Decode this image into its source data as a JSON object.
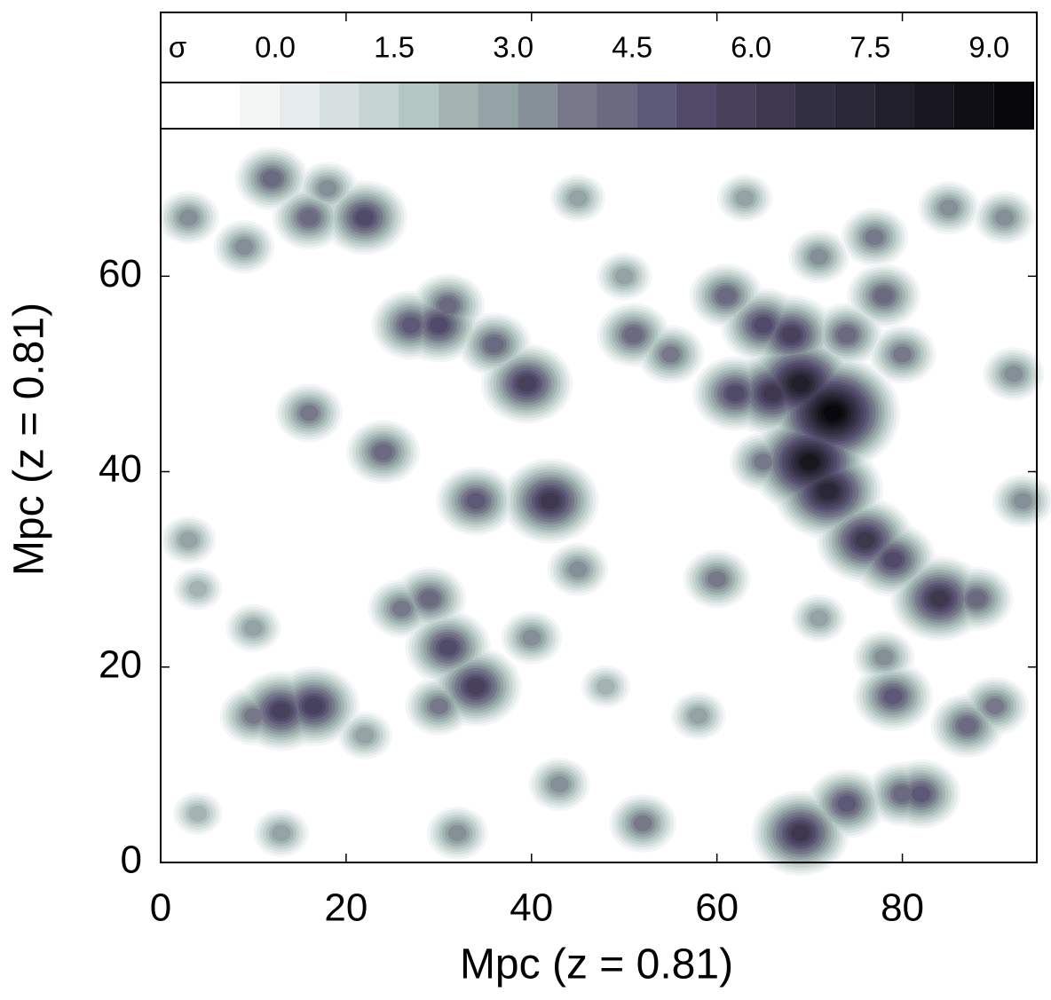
{
  "chart_data": {
    "type": "contour",
    "xlabel": "Mpc (z = 0.81)",
    "ylabel": "Mpc (z = 0.81)",
    "xlim": [
      0,
      94.5
    ],
    "ylim": [
      0,
      87
    ],
    "xticks": [
      0,
      20,
      40,
      60,
      80
    ],
    "yticks": [
      0,
      20,
      40,
      60
    ],
    "colorbar": {
      "label": "σ",
      "clim": [
        -1.5,
        9.5
      ],
      "ticks": [
        {
          "value": 0,
          "label": "0.0"
        },
        {
          "value": 1.5,
          "label": "1.5"
        },
        {
          "value": 3,
          "label": "3.0"
        },
        {
          "value": 4.5,
          "label": "4.5"
        },
        {
          "value": 6,
          "label": "6.0"
        },
        {
          "value": 7.5,
          "label": "7.5"
        },
        {
          "value": 9,
          "label": "9.0"
        }
      ],
      "levels": [
        -1.5,
        -1.0,
        -0.5,
        0.0,
        0.5,
        1.0,
        1.5,
        2.0,
        2.5,
        3.0,
        3.5,
        4.0,
        4.5,
        5.0,
        5.5,
        6.0,
        6.5,
        7.0,
        7.5,
        8.0,
        8.5,
        9.0
      ],
      "colors": [
        "#ffffff",
        "#ffffff",
        "#f4f6f6",
        "#e6ecec",
        "#d5e0df",
        "#c5d3d1",
        "#b4c6c3",
        "#a3b4b3",
        "#94a3a5",
        "#858f97",
        "#77798a",
        "#6a6a80",
        "#5c5877",
        "#514b69",
        "#47415b",
        "#3d384e",
        "#332f42",
        "#2a2736",
        "#211f2b",
        "#181720",
        "#0f0f15",
        "#08080c"
      ]
    },
    "sources": [
      {
        "x": 72.5,
        "y": 46,
        "sigma": 9.0
      },
      {
        "x": 69,
        "y": 49,
        "sigma": 7.5
      },
      {
        "x": 70,
        "y": 41,
        "sigma": 8.0
      },
      {
        "x": 72,
        "y": 38,
        "sigma": 7.0
      },
      {
        "x": 66,
        "y": 48,
        "sigma": 6.0
      },
      {
        "x": 62,
        "y": 48,
        "sigma": 5.0
      },
      {
        "x": 76,
        "y": 33,
        "sigma": 6.0
      },
      {
        "x": 79,
        "y": 31,
        "sigma": 5.0
      },
      {
        "x": 84,
        "y": 27,
        "sigma": 6.0
      },
      {
        "x": 88,
        "y": 27,
        "sigma": 4.0
      },
      {
        "x": 68,
        "y": 54,
        "sigma": 5.5
      },
      {
        "x": 65,
        "y": 55,
        "sigma": 5.0
      },
      {
        "x": 61,
        "y": 58,
        "sigma": 4.0
      },
      {
        "x": 74,
        "y": 54,
        "sigma": 4.0
      },
      {
        "x": 78,
        "y": 58,
        "sigma": 4.0
      },
      {
        "x": 80,
        "y": 52,
        "sigma": 3.5
      },
      {
        "x": 55,
        "y": 52,
        "sigma": 3.5
      },
      {
        "x": 51,
        "y": 54,
        "sigma": 4.0
      },
      {
        "x": 42,
        "y": 37,
        "sigma": 6.0
      },
      {
        "x": 34,
        "y": 37,
        "sigma": 4.5
      },
      {
        "x": 39.5,
        "y": 49,
        "sigma": 5.5
      },
      {
        "x": 36,
        "y": 53,
        "sigma": 4.0
      },
      {
        "x": 30,
        "y": 55,
        "sigma": 5.0
      },
      {
        "x": 27,
        "y": 55,
        "sigma": 4.5
      },
      {
        "x": 31,
        "y": 57,
        "sigma": 4.0
      },
      {
        "x": 22,
        "y": 66,
        "sigma": 5.0
      },
      {
        "x": 16,
        "y": 66,
        "sigma": 4.0
      },
      {
        "x": 12,
        "y": 70,
        "sigma": 4.0
      },
      {
        "x": 18,
        "y": 69,
        "sigma": 3.0
      },
      {
        "x": 3,
        "y": 66,
        "sigma": 3.0
      },
      {
        "x": 9,
        "y": 63,
        "sigma": 3.0
      },
      {
        "x": 24,
        "y": 42,
        "sigma": 4.0
      },
      {
        "x": 16,
        "y": 46,
        "sigma": 3.5
      },
      {
        "x": 13,
        "y": 15.5,
        "sigma": 5.5
      },
      {
        "x": 16.5,
        "y": 16,
        "sigma": 5.5
      },
      {
        "x": 10,
        "y": 15,
        "sigma": 3.5
      },
      {
        "x": 31,
        "y": 22,
        "sigma": 5.0
      },
      {
        "x": 34,
        "y": 18,
        "sigma": 5.5
      },
      {
        "x": 30,
        "y": 16,
        "sigma": 3.5
      },
      {
        "x": 29,
        "y": 27,
        "sigma": 4.0
      },
      {
        "x": 26,
        "y": 26,
        "sigma": 3.5
      },
      {
        "x": 40,
        "y": 23,
        "sigma": 3.0
      },
      {
        "x": 45,
        "y": 30,
        "sigma": 3.0
      },
      {
        "x": 60,
        "y": 29,
        "sigma": 3.5
      },
      {
        "x": 71,
        "y": 25,
        "sigma": 2.5
      },
      {
        "x": 69,
        "y": 3,
        "sigma": 6.0
      },
      {
        "x": 74,
        "y": 6,
        "sigma": 4.5
      },
      {
        "x": 80,
        "y": 7,
        "sigma": 4.0
      },
      {
        "x": 82,
        "y": 7,
        "sigma": 4.5
      },
      {
        "x": 79,
        "y": 17,
        "sigma": 4.5
      },
      {
        "x": 87,
        "y": 14,
        "sigma": 4.0
      },
      {
        "x": 90,
        "y": 16,
        "sigma": 3.5
      },
      {
        "x": 78,
        "y": 21,
        "sigma": 3.0
      },
      {
        "x": 52,
        "y": 4,
        "sigma": 3.5
      },
      {
        "x": 32,
        "y": 3,
        "sigma": 3.0
      },
      {
        "x": 43,
        "y": 8,
        "sigma": 3.0
      },
      {
        "x": 13,
        "y": 3,
        "sigma": 2.5
      },
      {
        "x": 4,
        "y": 5,
        "sigma": 2.0
      },
      {
        "x": 3,
        "y": 33,
        "sigma": 2.5
      },
      {
        "x": 22,
        "y": 13,
        "sigma": 2.5
      },
      {
        "x": 65,
        "y": 41,
        "sigma": 3.5
      },
      {
        "x": 92,
        "y": 50,
        "sigma": 3.0
      },
      {
        "x": 93,
        "y": 37,
        "sigma": 3.0
      },
      {
        "x": 91,
        "y": 66,
        "sigma": 3.0
      },
      {
        "x": 85,
        "y": 67,
        "sigma": 3.0
      },
      {
        "x": 71,
        "y": 62,
        "sigma": 3.0
      },
      {
        "x": 77,
        "y": 64,
        "sigma": 3.5
      },
      {
        "x": 63,
        "y": 68,
        "sigma": 2.5
      },
      {
        "x": 45,
        "y": 68,
        "sigma": 2.5
      },
      {
        "x": 50,
        "y": 60,
        "sigma": 2.5
      },
      {
        "x": 58,
        "y": 15,
        "sigma": 2.5
      },
      {
        "x": 48,
        "y": 18,
        "sigma": 2.0
      },
      {
        "x": 10,
        "y": 24,
        "sigma": 2.5
      },
      {
        "x": 4,
        "y": 28,
        "sigma": 2.0
      }
    ]
  }
}
